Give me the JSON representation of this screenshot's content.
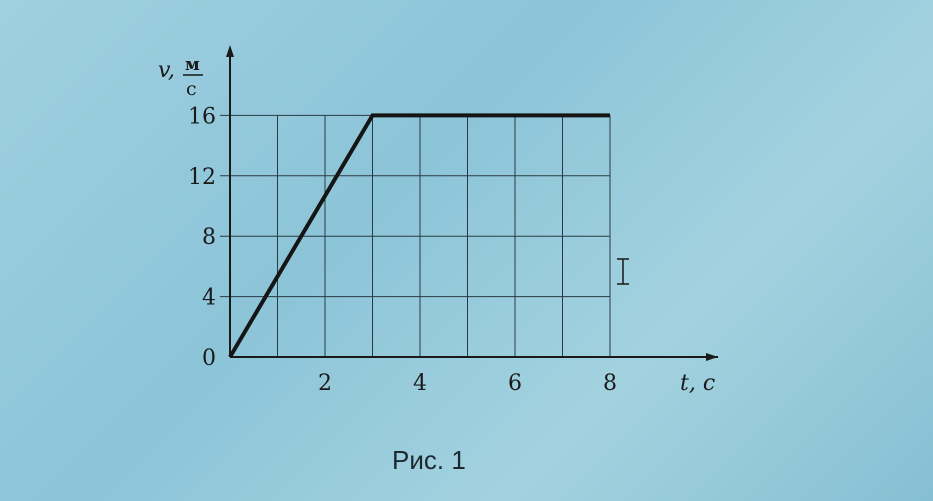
{
  "chart_data": {
    "type": "line",
    "title": "",
    "xlabel": "t, с",
    "ylabel_var": "v,",
    "ylabel_unit_num": "м",
    "ylabel_unit_den": "с",
    "x_ticks": [
      "2",
      "4",
      "6",
      "8"
    ],
    "y_ticks": [
      "0",
      "4",
      "8",
      "12",
      "16"
    ],
    "xlim": [
      0,
      8
    ],
    "ylim": [
      0,
      16
    ],
    "grid": {
      "on": true,
      "x_step": 1,
      "y_step": 4
    },
    "series": [
      {
        "x": [
          0,
          3,
          8
        ],
        "y": [
          0,
          16,
          16
        ]
      }
    ],
    "colors": {
      "line": "#151515",
      "grid": "#2a3a44",
      "axis": "#1a1a1a"
    }
  },
  "caption": "Рис. 1",
  "cursor_icon": "text-cursor-icon"
}
